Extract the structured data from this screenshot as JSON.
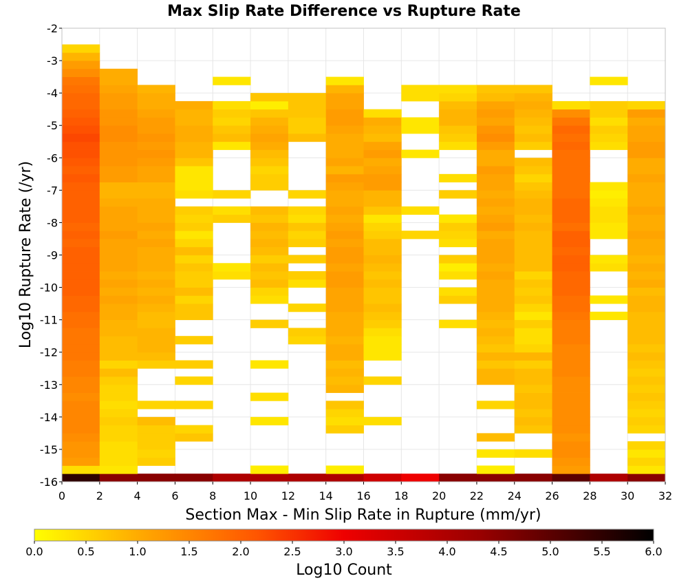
{
  "chart_data": {
    "type": "heatmap",
    "title": "Max Slip Rate Difference vs Rupture Rate",
    "xlabel": "Section Max - Min Slip Rate in Rupture (mm/yr)",
    "ylabel": "Log10 Rupture Rate (/yr)",
    "xlim": [
      0,
      32
    ],
    "ylim": [
      -16,
      -2
    ],
    "x_ticks": [
      "0",
      "2",
      "4",
      "6",
      "8",
      "10",
      "12",
      "14",
      "16",
      "18",
      "20",
      "22",
      "24",
      "26",
      "28",
      "30",
      "32"
    ],
    "y_ticks": [
      "-2",
      "-3",
      "-4",
      "-5",
      "-6",
      "-7",
      "-8",
      "-9",
      "-10",
      "-11",
      "-12",
      "-13",
      "-14",
      "-15",
      "-16"
    ],
    "x_bin_width": 2,
    "y_bin_height": 0.25,
    "x_bin_starts": [
      0,
      2,
      4,
      6,
      8,
      10,
      12,
      14,
      16,
      18,
      20,
      22,
      24,
      26,
      28,
      30
    ],
    "y_bin_starts": [
      -16.0,
      -15.75,
      -15.5,
      -15.25,
      -15.0,
      -14.75,
      -14.5,
      -14.25,
      -14.0,
      -13.75,
      -13.5,
      -13.25,
      -13.0,
      -12.75,
      -12.5,
      -12.25,
      -12.0,
      -11.75,
      -11.5,
      -11.25,
      -11.0,
      -10.75,
      -10.5,
      -10.25,
      -10.0,
      -9.75,
      -9.5,
      -9.25,
      -9.0,
      -8.75,
      -8.5,
      -8.25,
      -8.0,
      -7.75,
      -7.5,
      -7.25,
      -7.0,
      -6.75,
      -6.5,
      -6.25,
      -6.0,
      -5.75,
      -5.5,
      -5.25,
      -5.0,
      -4.75,
      -4.5,
      -4.25,
      -4.0,
      -3.75,
      -3.5,
      -3.25,
      -3.0,
      -2.75
    ],
    "rows_note": "values[i][j] = Log10 Count for y bin i and x bin j; null = empty",
    "values": [
      [
        5.5,
        4.5,
        4.5,
        4.5,
        4.0,
        4.0,
        4.0,
        4.0,
        3.5,
        3.0,
        4.5,
        4.5,
        4.5,
        5.0,
        4.0,
        4.5
      ],
      [
        0.4,
        0.3,
        null,
        null,
        null,
        0.2,
        null,
        0.2,
        null,
        null,
        null,
        0.2,
        null,
        1.2,
        null,
        0.3
      ],
      [
        1.2,
        0.4,
        0.6,
        null,
        null,
        null,
        null,
        null,
        null,
        null,
        null,
        null,
        null,
        1.3,
        null,
        0.5
      ],
      [
        1.3,
        0.4,
        0.5,
        null,
        null,
        null,
        null,
        null,
        null,
        null,
        null,
        0.3,
        0.4,
        1.4,
        null,
        0.3
      ],
      [
        1.3,
        0.4,
        0.6,
        null,
        null,
        null,
        null,
        null,
        null,
        null,
        null,
        null,
        null,
        1.4,
        null,
        0.5
      ],
      [
        1.4,
        0.5,
        0.6,
        0.7,
        null,
        null,
        null,
        null,
        null,
        null,
        null,
        0.8,
        null,
        1.3,
        null,
        null
      ],
      [
        1.5,
        0.5,
        0.6,
        0.5,
        null,
        null,
        null,
        0.6,
        null,
        null,
        null,
        null,
        0.7,
        1.4,
        null,
        0.5
      ],
      [
        1.5,
        0.6,
        0.8,
        null,
        null,
        0.3,
        null,
        0.4,
        0.4,
        null,
        null,
        null,
        0.8,
        1.4,
        null,
        0.6
      ],
      [
        1.5,
        0.5,
        null,
        null,
        null,
        null,
        null,
        0.5,
        null,
        null,
        null,
        null,
        0.7,
        1.4,
        null,
        0.5
      ],
      [
        1.5,
        0.4,
        0.5,
        0.5,
        null,
        null,
        null,
        0.7,
        null,
        null,
        null,
        0.5,
        0.8,
        1.4,
        null,
        0.6
      ],
      [
        1.4,
        0.5,
        null,
        null,
        null,
        0.4,
        null,
        null,
        null,
        null,
        null,
        null,
        0.8,
        1.4,
        null,
        0.7
      ],
      [
        1.5,
        0.5,
        null,
        null,
        null,
        null,
        null,
        0.9,
        null,
        null,
        null,
        null,
        0.7,
        1.4,
        null,
        0.6
      ],
      [
        1.5,
        0.6,
        null,
        0.5,
        null,
        null,
        null,
        0.8,
        0.5,
        null,
        null,
        0.9,
        0.8,
        1.4,
        null,
        0.7
      ],
      [
        1.6,
        0.8,
        null,
        null,
        null,
        null,
        null,
        0.9,
        null,
        null,
        null,
        0.9,
        0.8,
        1.5,
        null,
        0.6
      ],
      [
        1.6,
        0.5,
        0.6,
        0.6,
        null,
        0.3,
        null,
        0.8,
        null,
        null,
        null,
        0.7,
        0.6,
        1.5,
        null,
        0.7
      ],
      [
        1.7,
        0.8,
        0.8,
        null,
        null,
        null,
        null,
        1.0,
        0.3,
        null,
        null,
        0.9,
        0.9,
        1.5,
        null,
        0.8
      ],
      [
        1.7,
        0.8,
        0.9,
        null,
        null,
        null,
        null,
        1.0,
        0.3,
        null,
        null,
        0.7,
        0.5,
        1.5,
        null,
        0.7
      ],
      [
        1.7,
        0.8,
        0.9,
        0.6,
        null,
        null,
        0.5,
        0.9,
        0.3,
        null,
        null,
        0.8,
        0.4,
        1.6,
        null,
        0.8
      ],
      [
        1.7,
        0.9,
        0.9,
        null,
        null,
        null,
        0.6,
        1.0,
        0.4,
        null,
        null,
        0.9,
        0.4,
        1.6,
        null,
        0.8
      ],
      [
        1.8,
        0.9,
        0.8,
        null,
        null,
        0.6,
        null,
        1.0,
        0.6,
        null,
        0.4,
        0.8,
        0.6,
        1.6,
        null,
        0.8
      ],
      [
        1.8,
        1.0,
        0.8,
        0.7,
        null,
        null,
        null,
        1.0,
        0.7,
        null,
        null,
        0.9,
        0.3,
        1.7,
        0.3,
        0.8
      ],
      [
        1.9,
        1.0,
        0.9,
        0.7,
        null,
        null,
        0.5,
        1.1,
        0.8,
        null,
        null,
        1.0,
        0.5,
        1.8,
        null,
        0.9
      ],
      [
        1.9,
        1.1,
        1.0,
        0.5,
        null,
        0.4,
        null,
        1.1,
        0.7,
        null,
        0.6,
        1.0,
        0.7,
        1.8,
        0.3,
        0.9
      ],
      [
        2.0,
        1.0,
        0.9,
        0.8,
        null,
        0.5,
        null,
        1.1,
        0.7,
        null,
        0.4,
        1.0,
        0.6,
        1.9,
        null,
        0.8
      ],
      [
        2.0,
        1.1,
        1.0,
        0.6,
        null,
        0.8,
        0.4,
        1.2,
        0.8,
        null,
        null,
        1.0,
        0.7,
        1.9,
        null,
        1.0
      ],
      [
        2.0,
        1.0,
        0.9,
        0.6,
        0.4,
        0.7,
        0.6,
        1.2,
        0.7,
        null,
        0.4,
        1.1,
        0.5,
        1.9,
        null,
        0.9
      ],
      [
        2.0,
        1.1,
        1.0,
        0.7,
        0.3,
        0.8,
        null,
        1.1,
        0.8,
        null,
        0.2,
        1.0,
        0.8,
        2.0,
        0.4,
        1.0
      ],
      [
        2.0,
        1.1,
        1.0,
        0.5,
        null,
        0.6,
        0.6,
        1.2,
        0.9,
        null,
        0.6,
        1.1,
        0.8,
        2.0,
        0.3,
        0.9
      ],
      [
        2.0,
        1.1,
        1.0,
        0.8,
        null,
        0.8,
        null,
        1.2,
        0.8,
        null,
        null,
        1.1,
        0.8,
        1.9,
        null,
        1.0
      ],
      [
        1.9,
        1.1,
        1.1,
        0.5,
        null,
        0.9,
        0.6,
        1.1,
        0.8,
        null,
        0.4,
        1.1,
        0.8,
        2.0,
        null,
        1.0
      ],
      [
        2.0,
        1.2,
        1.0,
        0.3,
        null,
        0.8,
        0.5,
        1.2,
        0.6,
        0.5,
        0.5,
        1.0,
        0.8,
        2.0,
        0.3,
        1.1
      ],
      [
        1.9,
        1.1,
        1.1,
        0.6,
        null,
        0.9,
        0.7,
        1.1,
        0.5,
        null,
        0.6,
        1.2,
        0.9,
        1.8,
        0.3,
        1.0
      ],
      [
        2.0,
        1.1,
        1.0,
        0.5,
        0.6,
        0.7,
        0.4,
        1.0,
        0.3,
        null,
        0.3,
        1.1,
        0.8,
        1.9,
        0.4,
        1.0
      ],
      [
        2.0,
        1.1,
        1.0,
        0.6,
        0.4,
        0.8,
        0.5,
        1.1,
        0.7,
        0.4,
        null,
        1.0,
        0.9,
        1.9,
        0.4,
        1.1
      ],
      [
        2.0,
        1.0,
        1.0,
        null,
        null,
        null,
        null,
        1.0,
        0.9,
        null,
        null,
        1.1,
        0.9,
        1.9,
        0.3,
        1.0
      ],
      [
        2.0,
        0.9,
        0.9,
        0.4,
        0.5,
        null,
        0.5,
        1.0,
        0.9,
        null,
        0.6,
        1.0,
        0.8,
        1.8,
        0.2,
        1.0
      ],
      [
        2.0,
        0.9,
        0.9,
        0.3,
        null,
        0.6,
        null,
        1.1,
        1.2,
        null,
        null,
        1.1,
        0.7,
        1.8,
        0.3,
        1.0
      ],
      [
        2.1,
        1.2,
        1.1,
        0.3,
        null,
        0.6,
        null,
        1.2,
        1.2,
        null,
        0.4,
        1.1,
        0.5,
        1.8,
        null,
        1.1
      ],
      [
        2.0,
        1.2,
        1.1,
        0.3,
        null,
        0.5,
        null,
        0.9,
        1.1,
        null,
        null,
        1.2,
        0.7,
        1.8,
        null,
        1.0
      ],
      [
        2.1,
        1.3,
        1.2,
        0.7,
        null,
        0.7,
        null,
        1.1,
        1.0,
        null,
        null,
        1.0,
        0.8,
        1.8,
        null,
        1.0
      ],
      [
        2.2,
        1.3,
        1.3,
        0.9,
        null,
        0.8,
        null,
        1.0,
        1.2,
        0.3,
        null,
        1.0,
        null,
        1.8,
        null,
        1.2
      ],
      [
        2.2,
        1.3,
        1.2,
        0.9,
        0.3,
        1.0,
        null,
        1.0,
        1.1,
        null,
        0.4,
        1.2,
        0.6,
        1.9,
        0.4,
        1.2
      ],
      [
        2.3,
        1.4,
        1.3,
        1.0,
        0.8,
        1.1,
        0.8,
        1.0,
        0.8,
        null,
        0.6,
        1.4,
        0.8,
        1.8,
        0.5,
        1.1
      ],
      [
        2.2,
        1.4,
        1.2,
        1.0,
        0.7,
        1.0,
        0.6,
        1.1,
        0.9,
        0.3,
        0.7,
        1.3,
        0.7,
        1.9,
        0.6,
        1.1
      ],
      [
        2.1,
        1.3,
        1.2,
        0.9,
        0.5,
        0.9,
        0.6,
        1.2,
        1.0,
        0.3,
        0.9,
        1.1,
        0.8,
        1.7,
        0.4,
        1.0
      ],
      [
        2.0,
        1.3,
        1.1,
        0.9,
        0.6,
        0.7,
        0.7,
        1.2,
        0.4,
        null,
        0.9,
        1.2,
        0.9,
        1.4,
        0.6,
        1.2
      ],
      [
        1.9,
        1.2,
        1.0,
        1.0,
        0.4,
        0.2,
        0.7,
        1.1,
        null,
        null,
        0.8,
        1.1,
        1.0,
        0.4,
        0.6,
        0.5
      ],
      [
        1.9,
        1.2,
        1.0,
        null,
        null,
        0.7,
        0.7,
        1.1,
        null,
        0.4,
        0.5,
        0.8,
        0.9,
        null,
        null,
        null
      ],
      [
        1.8,
        1.1,
        0.9,
        null,
        null,
        null,
        null,
        0.9,
        null,
        0.4,
        0.4,
        0.7,
        0.7,
        null,
        null,
        null
      ],
      [
        1.7,
        1.0,
        null,
        null,
        0.3,
        null,
        null,
        0.3,
        null,
        null,
        null,
        null,
        null,
        null,
        0.3,
        null
      ],
      [
        1.4,
        1.0,
        null,
        null,
        null,
        null,
        null,
        null,
        null,
        null,
        null,
        null,
        null,
        null,
        null,
        null
      ],
      [
        1.2,
        null,
        null,
        null,
        null,
        null,
        null,
        null,
        null,
        null,
        null,
        null,
        null,
        null,
        null,
        null
      ],
      [
        0.9,
        null,
        null,
        null,
        null,
        null,
        null,
        null,
        null,
        null,
        null,
        null,
        null,
        null,
        null,
        null
      ],
      [
        0.5,
        null,
        null,
        null,
        null,
        null,
        null,
        null,
        null,
        null,
        null,
        null,
        null,
        null,
        null,
        null
      ]
    ],
    "colorbar": {
      "label": "Log10 Count",
      "min": 0.0,
      "max": 6.0,
      "ticks": [
        "0.0",
        "0.5",
        "1.0",
        "1.5",
        "2.0",
        "2.5",
        "3.0",
        "3.5",
        "4.0",
        "4.5",
        "5.0",
        "5.5",
        "6.0"
      ],
      "colors": [
        "#ffff00",
        "#ffa500",
        "#ff5500",
        "#ee0000",
        "#990000",
        "#000000"
      ]
    },
    "grid": true,
    "colors": {
      "grid": "#e6e6e6",
      "frame": "#c0c0c0",
      "empty": "#ffffff"
    }
  }
}
